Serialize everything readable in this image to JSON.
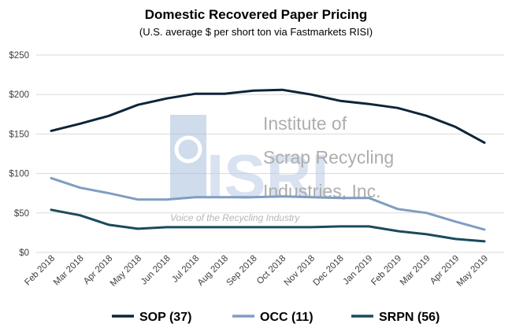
{
  "chart_data": {
    "type": "line",
    "title": "Domestic Recovered Paper Pricing",
    "subtitle": "(U.S. average $ per short ton via Fastmarkets RISI)",
    "xlabel": "",
    "ylabel": "",
    "ylim": [
      0,
      250
    ],
    "yticks": [
      "$0",
      "$50",
      "$100",
      "$150",
      "$200",
      "$250"
    ],
    "categories": [
      "Feb 2018",
      "Mar 2018",
      "Apr 2018",
      "May 2018",
      "Jun 2018",
      "Jul 2018",
      "Aug 2018",
      "Sep 2018",
      "Oct 2018",
      "Nov 2018",
      "Dec 2018",
      "Jan 2019",
      "Feb 2019",
      "Mar 2019",
      "Apr 2019",
      "May 2019"
    ],
    "grid": true,
    "legend": "bottom",
    "series": [
      {
        "name": "SOP (37)",
        "color": "#0f2438",
        "values": [
          154,
          163,
          173,
          187,
          195,
          201,
          201,
          205,
          206,
          200,
          192,
          188,
          183,
          173,
          159,
          139
        ]
      },
      {
        "name": "OCC (11)",
        "color": "#7f9dc2",
        "values": [
          94,
          82,
          75,
          67,
          67,
          70,
          70,
          70,
          71,
          70,
          69,
          69,
          55,
          50,
          39,
          29
        ]
      },
      {
        "name": "SRPN (56)",
        "color": "#1a4a5e",
        "values": [
          54,
          47,
          35,
          30,
          32,
          32,
          32,
          32,
          32,
          32,
          33,
          33,
          27,
          23,
          17,
          14
        ]
      }
    ]
  },
  "watermark": {
    "logo": "ISRI",
    "lines": [
      "Institute of",
      "Scrap Recycling",
      "Industries, Inc."
    ],
    "tagline": "Voice of the Recycling Industry"
  }
}
